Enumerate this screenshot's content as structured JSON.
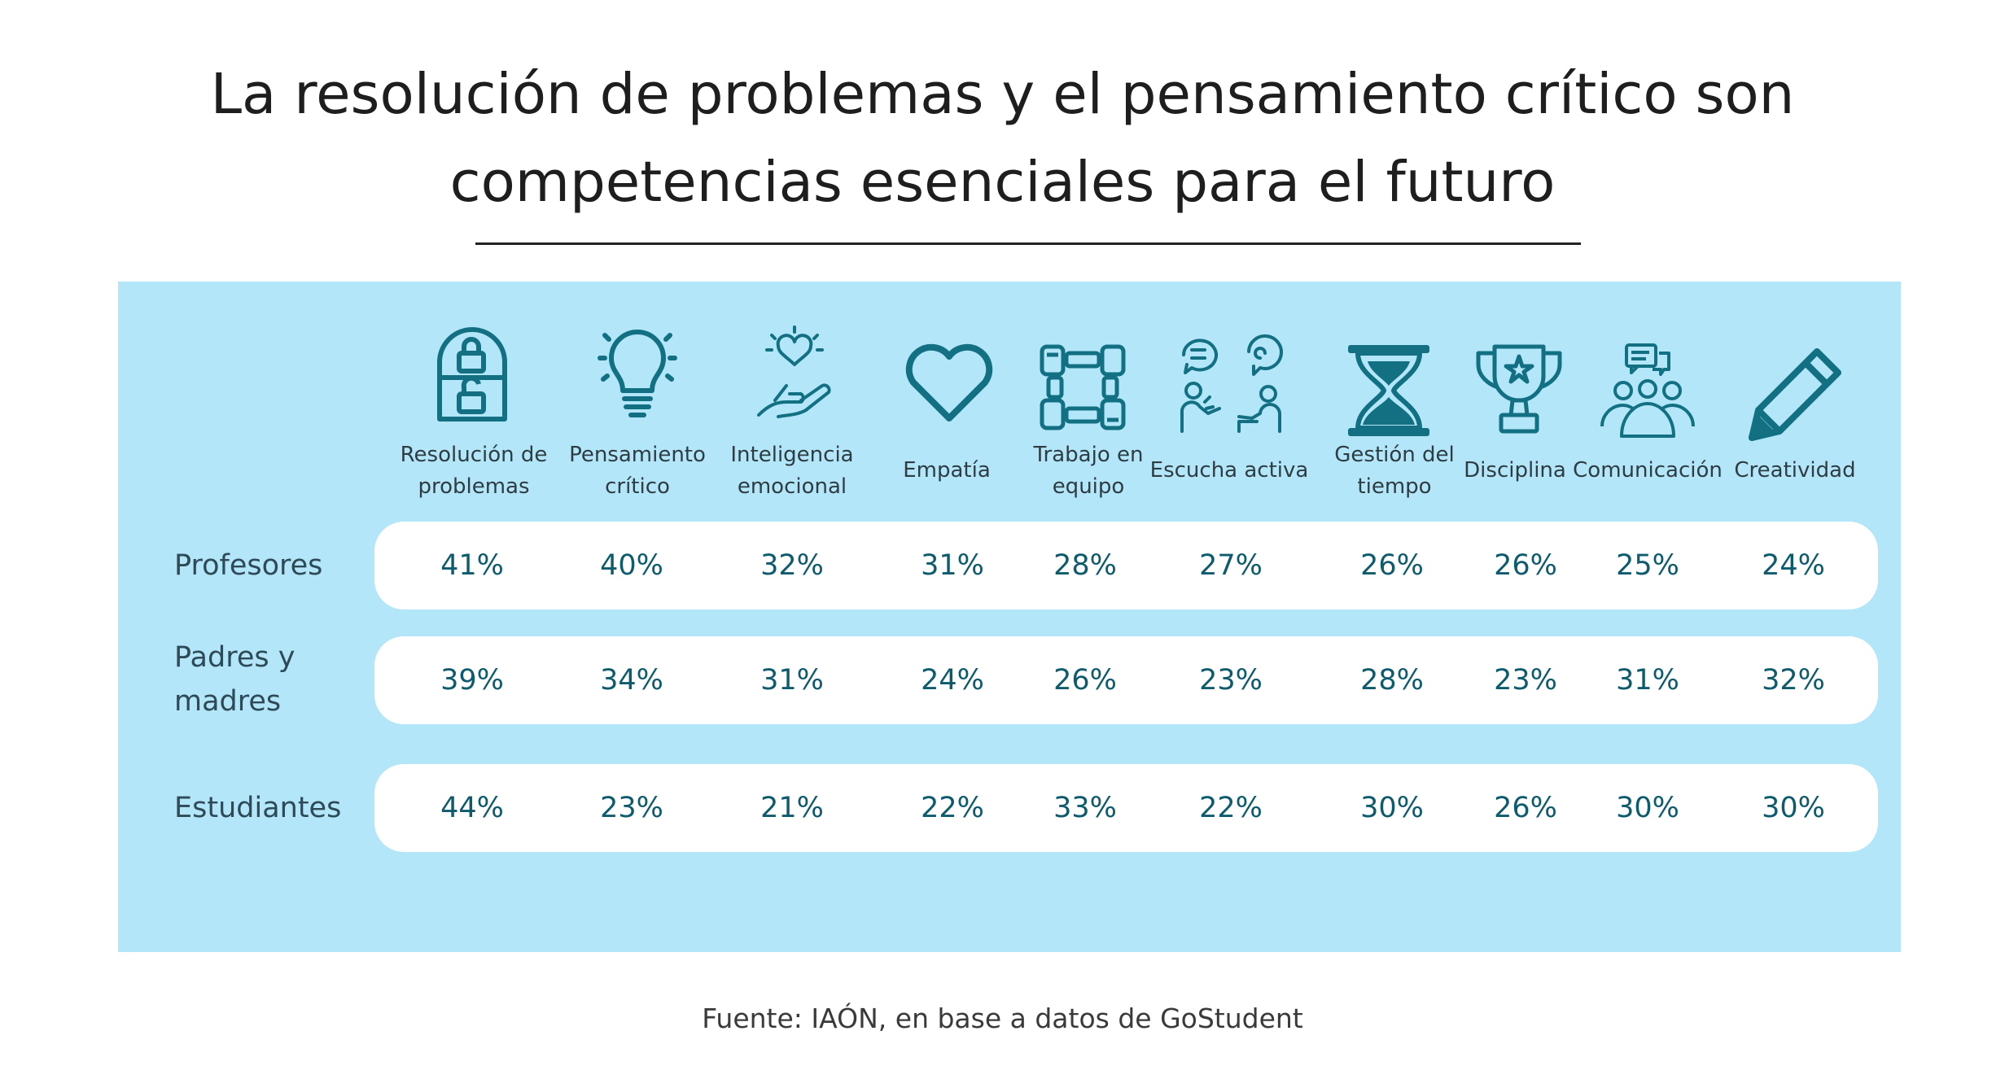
{
  "title": {
    "line1": "La resolución de problemas y el pensamiento crítico son",
    "line2": "competencias esenciales para el futuro"
  },
  "source": "Fuente: IAÓN, en base a datos de GoStudent",
  "colors": {
    "panel": "#b3e6f8",
    "icon": "#137083",
    "value": "#0e5b6e",
    "row_bg": "#ffffff"
  },
  "columns": [
    {
      "line1": "Resolución de",
      "line2": "problemas",
      "icon": "lock-arch-icon"
    },
    {
      "line1": "Pensamiento",
      "line2": "crítico",
      "icon": "lightbulb-icon"
    },
    {
      "line1": "Inteligencia",
      "line2": "emocional",
      "icon": "hand-heart-icon"
    },
    {
      "line1": "Empatía",
      "line2": "",
      "icon": "heart-icon"
    },
    {
      "line1": "Trabajo en",
      "line2": "equipo",
      "icon": "teamwork-hands-icon"
    },
    {
      "line1": "Escucha activa",
      "line2": "",
      "icon": "listening-people-icon"
    },
    {
      "line1": "Gestión del",
      "line2": "tiempo",
      "icon": "hourglass-icon"
    },
    {
      "line1": "Disciplina",
      "line2": "",
      "icon": "trophy-icon"
    },
    {
      "line1": "Comunicación",
      "line2": "",
      "icon": "group-chat-icon"
    },
    {
      "line1": "Creatividad",
      "line2": "",
      "icon": "pencil-icon"
    }
  ],
  "chart_data": {
    "type": "table",
    "categories": [
      "Resolución de problemas",
      "Pensamiento crítico",
      "Inteligencia emocional",
      "Empatía",
      "Trabajo en equipo",
      "Escucha activa",
      "Gestión del tiempo",
      "Disciplina",
      "Comunicación",
      "Creatividad"
    ],
    "series": [
      {
        "name": "Profesores",
        "label_line1": "Profesores",
        "label_line2": "",
        "values": [
          41,
          40,
          32,
          31,
          28,
          27,
          26,
          26,
          25,
          24
        ],
        "display": [
          "41%",
          "40%",
          "32%",
          "31%",
          "28%",
          "27%",
          "26%",
          "26%",
          "25%",
          "24%"
        ]
      },
      {
        "name": "Padres y madres",
        "label_line1": "Padres y",
        "label_line2": "madres",
        "values": [
          39,
          34,
          31,
          24,
          26,
          23,
          28,
          23,
          31,
          32
        ],
        "display": [
          "39%",
          "34%",
          "31%",
          "24%",
          "26%",
          "23%",
          "28%",
          "23%",
          "31%",
          "32%"
        ]
      },
      {
        "name": "Estudiantes",
        "label_line1": "Estudiantes",
        "label_line2": "",
        "values": [
          44,
          23,
          21,
          22,
          33,
          22,
          30,
          26,
          30,
          30
        ],
        "display": [
          "44%",
          "23%",
          "21%",
          "22%",
          "33%",
          "22%",
          "30%",
          "26%",
          "30%",
          "30%"
        ]
      }
    ]
  }
}
